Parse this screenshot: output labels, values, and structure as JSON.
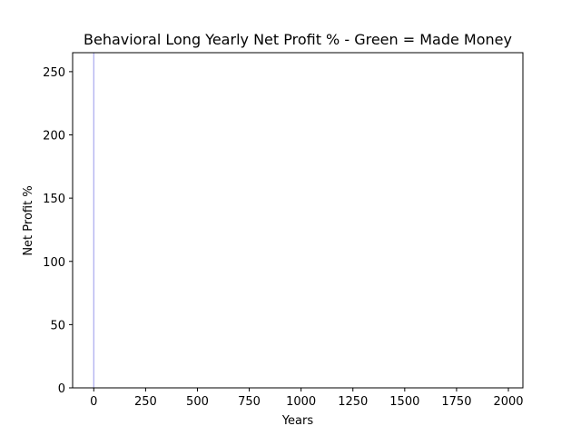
{
  "chart_data": {
    "type": "bar",
    "title": "Behavioral Long Yearly Net Profit % - Green = Made Money",
    "xlabel": "Years",
    "ylabel": "Net Profit %",
    "xlim": [
      -102,
      2070
    ],
    "ylim": [
      0,
      265
    ],
    "x_ticks": [
      0,
      250,
      500,
      750,
      1000,
      1250,
      1500,
      1750,
      2000
    ],
    "y_ticks": [
      0,
      50,
      100,
      150,
      200,
      250
    ],
    "grid": false,
    "series": [
      {
        "color": "#aaaaee",
        "points": [
          {
            "x": 0,
            "y": 265
          }
        ]
      }
    ]
  }
}
